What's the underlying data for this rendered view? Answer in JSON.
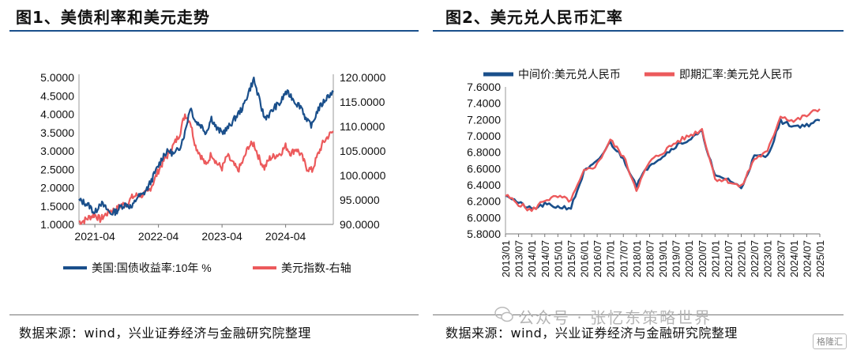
{
  "figure1": {
    "title": "图1、美债利率和美元走势",
    "source": "数据来源：wind，兴业证券经济与金融研究院整理"
  },
  "figure2": {
    "title": "图2、美元兑人民币汇率",
    "source": "数据来源：wind，兴业证券经济与金融研究院整理"
  },
  "watermark": "公众号 · 张忆东策略世界",
  "logo_text": "格隆汇",
  "colors": {
    "blue": "#1a4f8b",
    "red": "#ec5a5c"
  },
  "chart_data": [
    {
      "type": "line",
      "x_ticks": [
        "2021-04",
        "2022-04",
        "2023-04",
        "2024-04"
      ],
      "x": [
        "2021-01",
        "2021-02",
        "2021-03",
        "2021-04",
        "2021-05",
        "2021-06",
        "2021-07",
        "2021-08",
        "2021-09",
        "2021-10",
        "2021-11",
        "2021-12",
        "2022-01",
        "2022-02",
        "2022-03",
        "2022-04",
        "2022-05",
        "2022-06",
        "2022-07",
        "2022-08",
        "2022-09",
        "2022-10",
        "2022-11",
        "2022-12",
        "2023-01",
        "2023-02",
        "2023-03",
        "2023-04",
        "2023-05",
        "2023-06",
        "2023-07",
        "2023-08",
        "2023-09",
        "2023-10",
        "2023-11",
        "2023-12",
        "2024-01",
        "2024-02",
        "2024-03",
        "2024-04",
        "2024-05",
        "2024-06",
        "2024-07",
        "2024-08",
        "2024-09",
        "2024-10",
        "2024-11",
        "2024-12",
        "2025-01"
      ],
      "y_left": {
        "ticks": [
          "1.0000",
          "1.5000",
          "2.0000",
          "2.5000",
          "3.0000",
          "3.5000",
          "4.0000",
          "4.5000",
          "5.0000"
        ],
        "range": [
          1.0,
          5.0
        ]
      },
      "y_right": {
        "ticks": [
          "90.0000",
          "95.0000",
          "100.0000",
          "105.0000",
          "110.0000",
          "115.0000",
          "120.0000"
        ],
        "range": [
          90,
          120
        ]
      },
      "series": [
        {
          "name": "美国:国债收益率:10年  %",
          "axis": "left",
          "color": "#1a4f8b",
          "values": [
            1.65,
            1.6,
            1.5,
            1.3,
            1.6,
            1.45,
            1.3,
            1.35,
            1.5,
            1.55,
            1.45,
            1.75,
            1.8,
            2.0,
            2.3,
            2.6,
            2.9,
            3.0,
            2.9,
            3.1,
            3.5,
            4.2,
            3.8,
            3.7,
            3.5,
            3.9,
            3.6,
            3.5,
            3.6,
            3.8,
            4.0,
            4.2,
            4.6,
            4.95,
            4.4,
            3.9,
            4.0,
            4.2,
            4.3,
            4.6,
            4.5,
            4.3,
            4.2,
            3.8,
            3.7,
            4.1,
            4.3,
            4.5,
            4.6
          ]
        },
        {
          "name": "美元指数-右轴",
          "axis": "right",
          "color": "#ec5a5c",
          "values": [
            90.5,
            90.8,
            91.5,
            92.0,
            91.0,
            92.0,
            92.8,
            93.0,
            94.0,
            94.2,
            95.5,
            96.0,
            96.0,
            96.5,
            98.5,
            101.0,
            103.0,
            104.5,
            106.5,
            108.5,
            112.5,
            111.0,
            106.0,
            104.0,
            102.0,
            104.5,
            102.5,
            101.5,
            104.0,
            102.5,
            101.0,
            103.0,
            106.0,
            106.5,
            103.5,
            101.5,
            103.5,
            104.0,
            104.5,
            106.0,
            104.5,
            105.5,
            104.0,
            101.5,
            101.0,
            104.0,
            106.5,
            108.0,
            109.0
          ]
        }
      ]
    },
    {
      "type": "line",
      "x_ticks": [
        "2013/01",
        "2013/07",
        "2014/01",
        "2014/07",
        "2015/01",
        "2015/07",
        "2016/01",
        "2016/07",
        "2017/01",
        "2017/07",
        "2018/01",
        "2018/07",
        "2019/01",
        "2019/07",
        "2020/01",
        "2020/07",
        "2021/01",
        "2021/07",
        "2022/01",
        "2022/07",
        "2023/01",
        "2023/07",
        "2024/01",
        "2024/07",
        "2025/01"
      ],
      "x": [
        "2013/01",
        "2013/07",
        "2014/01",
        "2014/07",
        "2015/01",
        "2015/07",
        "2016/01",
        "2016/07",
        "2017/01",
        "2017/07",
        "2018/01",
        "2018/07",
        "2019/01",
        "2019/07",
        "2020/01",
        "2020/07",
        "2021/01",
        "2021/07",
        "2022/01",
        "2022/07",
        "2023/01",
        "2023/07",
        "2024/01",
        "2024/07",
        "2025/01"
      ],
      "y_axis": {
        "ticks": [
          "5.8000",
          "6.0000",
          "6.2000",
          "6.4000",
          "6.6000",
          "6.8000",
          "7.0000",
          "7.2000",
          "7.4000",
          "7.6000"
        ],
        "range": [
          5.8,
          7.6
        ]
      },
      "series": [
        {
          "name": "中间价:美元兑人民币",
          "color": "#1a4f8b",
          "values": [
            6.29,
            6.18,
            6.1,
            6.16,
            6.13,
            6.12,
            6.56,
            6.68,
            6.92,
            6.72,
            6.4,
            6.65,
            6.75,
            6.88,
            6.95,
            7.05,
            6.5,
            6.47,
            6.36,
            6.75,
            6.75,
            7.18,
            7.12,
            7.13,
            7.19
          ]
        },
        {
          "name": "即期汇率:美元兑人民币",
          "color": "#ec5a5c",
          "values": [
            6.27,
            6.17,
            6.08,
            6.22,
            6.25,
            6.21,
            6.56,
            6.65,
            6.95,
            6.75,
            6.35,
            6.68,
            6.8,
            6.92,
            7.0,
            7.08,
            6.48,
            6.45,
            6.37,
            6.72,
            6.8,
            7.25,
            7.18,
            7.25,
            7.33
          ]
        }
      ]
    }
  ]
}
